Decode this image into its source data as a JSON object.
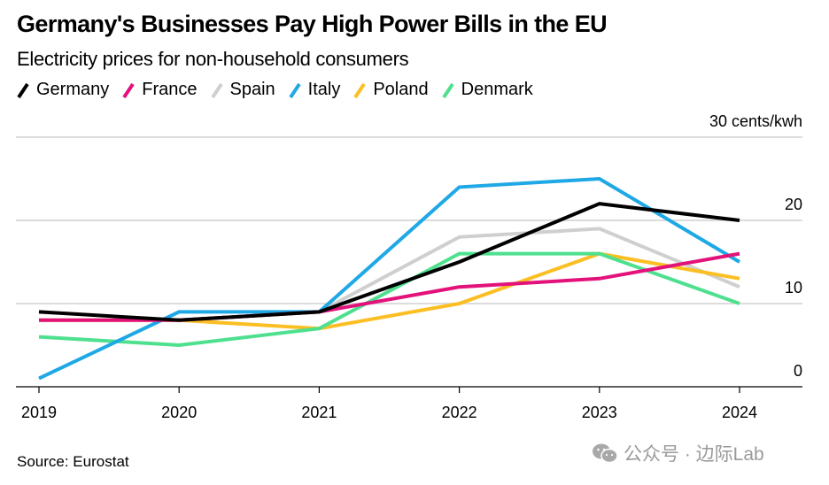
{
  "title": "Germany's Businesses Pay High Power Bills in the EU",
  "subtitle": "Electricity prices for non-household consumers",
  "source": "Source: Eurostat",
  "watermark": "公众号 · 边际Lab",
  "watermark_icon": "wechat-icon",
  "chart_data": {
    "type": "line",
    "title": "Germany's Businesses Pay High Power Bills in the EU",
    "subtitle": "Electricity prices for non-household consumers",
    "xlabel": "",
    "ylabel": "cents/kwh",
    "y_unit_label": "30 cents/kwh",
    "x": [
      "2019",
      "2020",
      "2021",
      "2022",
      "2023",
      "2024"
    ],
    "ylim": [
      0,
      30
    ],
    "yticks": [
      0,
      10,
      20,
      30
    ],
    "ytick_labels": [
      "0",
      "10",
      "20",
      "30 cents/kwh"
    ],
    "grid": true,
    "legend_position": "top-left",
    "series": [
      {
        "name": "Spain",
        "color": "#cfcfcf",
        "values": [
          8,
          8,
          9,
          18,
          19,
          12
        ]
      },
      {
        "name": "Poland",
        "color": "#fbbf24",
        "values": [
          8,
          8,
          7,
          10,
          16,
          13
        ]
      },
      {
        "name": "Denmark",
        "color": "#4ee08e",
        "values": [
          6,
          5,
          7,
          16,
          16,
          10
        ]
      },
      {
        "name": "Italy",
        "color": "#1fa8e6",
        "values": [
          1,
          9,
          9,
          24,
          25,
          15
        ]
      },
      {
        "name": "France",
        "color": "#e3127b",
        "values": [
          8,
          8,
          9,
          12,
          13,
          16
        ]
      },
      {
        "name": "Germany",
        "color": "#000000",
        "values": [
          9,
          8,
          9,
          15,
          22,
          20
        ]
      }
    ],
    "legend_order": [
      "Germany",
      "France",
      "Spain",
      "Italy",
      "Poland",
      "Denmark"
    ]
  }
}
